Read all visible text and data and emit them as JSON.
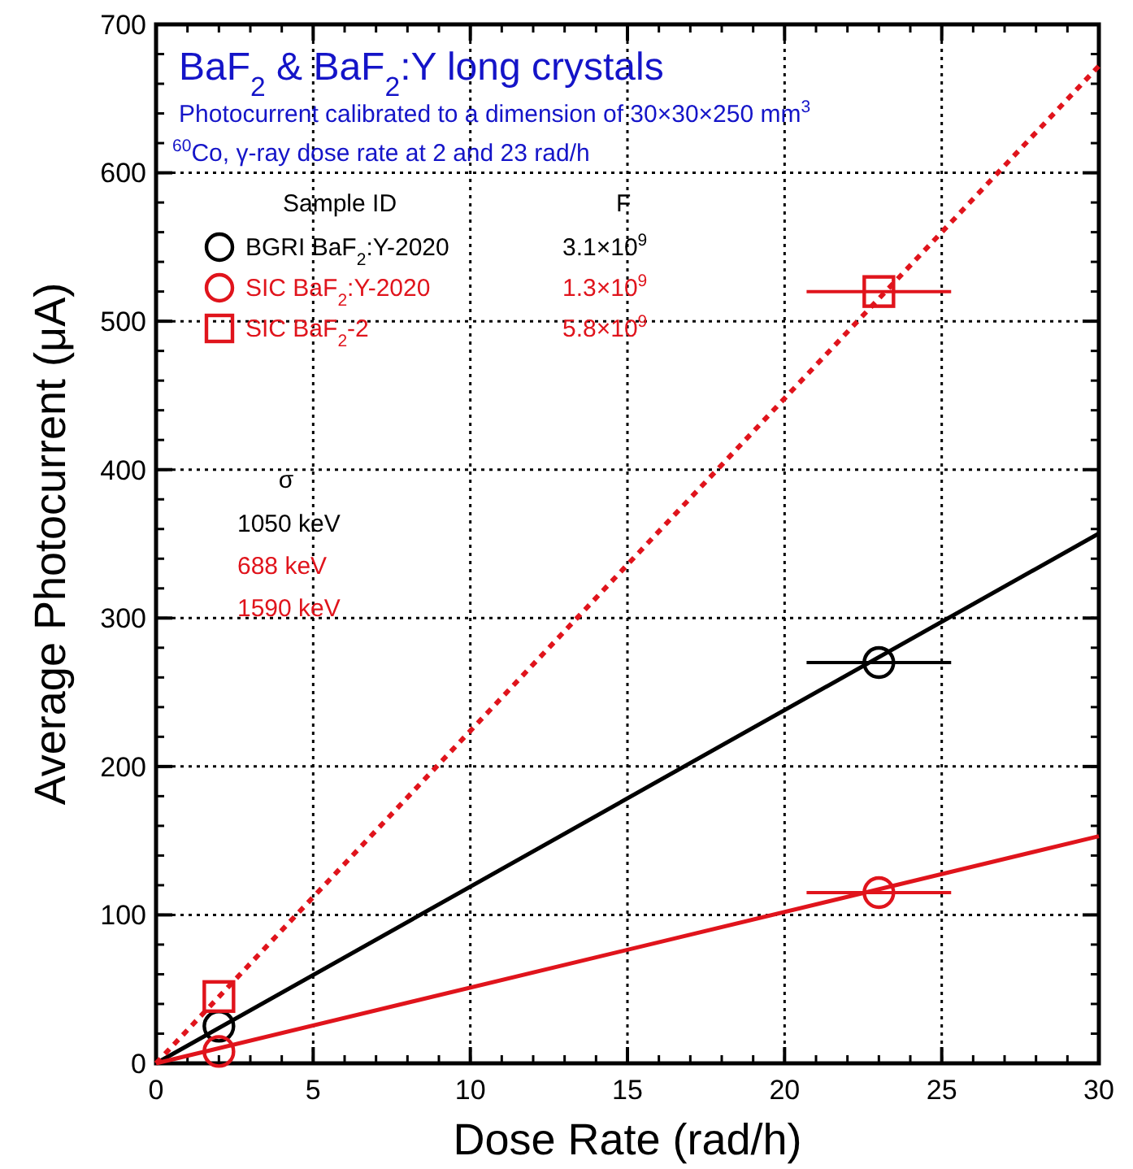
{
  "chart_data": {
    "type": "scatter",
    "title": "BaF$_{2}$ & BaF$_{2}$:Y long crystals",
    "subtitle": "Photocurrent calibrated to a dimension of 30×30×250 mm$^{3}$",
    "xlabel": "Dose Rate (rad/h)",
    "ylabel": "Average Photocurrent (μA)",
    "legend_title": "Sample ID",
    "legend": "top left",
    "grid": true,
    "xlim": [
      0,
      30
    ],
    "xticks": [
      0,
      5,
      10,
      15,
      20,
      25,
      30
    ],
    "ylim": [
      0,
      700
    ],
    "yticks": [
      0,
      100,
      200,
      300,
      400,
      500,
      600,
      700
    ],
    "series": [
      {
        "name": "BGRI BaF$_{2}$:Y-2020",
        "color": "#000000",
        "marker": "circle",
        "x": [
          2,
          23
        ],
        "values": [
          25,
          270
        ],
        "xerrors": [
          null,
          2.3
        ]
      },
      {
        "name": "SIC BaF$_{2}$:Y-2020",
        "color": "#e0141c",
        "marker": "circle",
        "x": [
          2,
          23
        ],
        "values": [
          8,
          115
        ],
        "xerrors": [
          null,
          2.3
        ]
      },
      {
        "name": "SIC BaF$_{2}$-2",
        "color": "#e0141c",
        "marker": "square",
        "x": [
          2,
          23
        ],
        "values": [
          45,
          520
        ],
        "xerrors": [
          null,
          2.3
        ]
      },
      {
        "type": "line",
        "color": "#000000",
        "line_style": "solid",
        "x": [
          0,
          30
        ],
        "values": [
          0,
          357
        ]
      },
      {
        "type": "line",
        "color": "#e0141c",
        "line_style": "solid",
        "x": [
          0,
          30
        ],
        "values": [
          0,
          153
        ]
      },
      {
        "type": "line",
        "color": "#e0141c",
        "line_style": "dotted",
        "x": [
          0,
          30
        ],
        "values": [
          0,
          672
        ]
      }
    ],
    "annotations": [
      "$^{60}$Co, γ-ray dose rate at 2 and 23 rad/h",
      "F",
      "3.1×10$^{9}$",
      "1.3×10$^{9}$",
      "5.8×10$^{9}$",
      "σ",
      "1050 keV",
      "688 keV",
      "1590 keV"
    ]
  }
}
